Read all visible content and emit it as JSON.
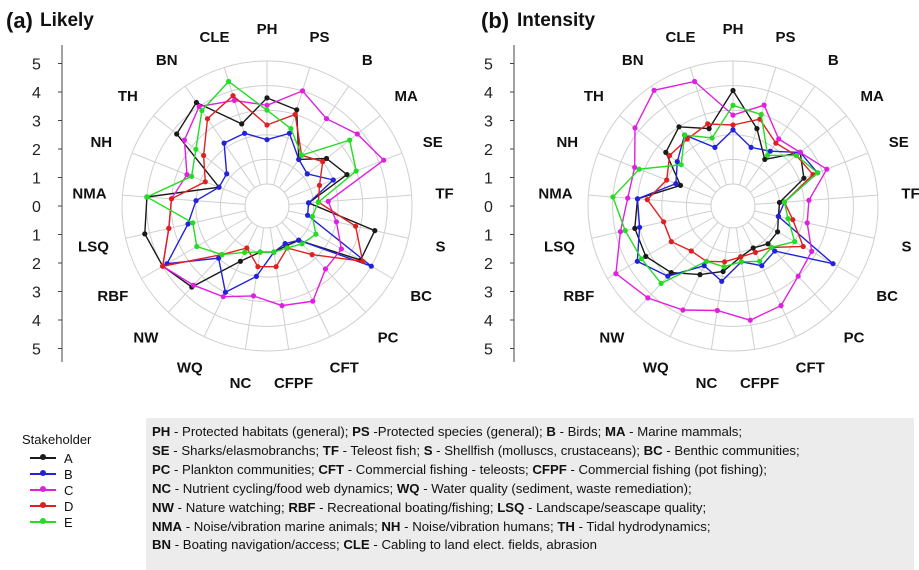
{
  "legend": {
    "title": "Stakeholder",
    "items": [
      {
        "name": "A",
        "color": "#1a1a1a"
      },
      {
        "name": "B",
        "color": "#2222dd"
      },
      {
        "name": "C",
        "color": "#e020e0"
      },
      {
        "name": "D",
        "color": "#e02020"
      },
      {
        "name": "E",
        "color": "#22dd22"
      }
    ]
  },
  "abbreviations": [
    [
      {
        "code": "PH",
        "desc": " - Protected habitats (general); "
      },
      {
        "code": "PS",
        "desc": " -Protected species (general); "
      },
      {
        "code": "B",
        "desc": " - Birds; "
      },
      {
        "code": "MA",
        "desc": " - Marine mammals;"
      }
    ],
    [
      {
        "code": "SE",
        "desc": " - Sharks/elasmobranchs; "
      },
      {
        "code": "TF",
        "desc": " - Teleost fish; "
      },
      {
        "code": "S",
        "desc": " - Shellfish (molluscs, crustaceans); "
      },
      {
        "code": "BC",
        "desc": " - Benthic communities;"
      }
    ],
    [
      {
        "code": "PC",
        "desc": " -  Plankton communities; "
      },
      {
        "code": "CFT",
        "desc": " - Commercial fishing - teleosts; "
      },
      {
        "code": "CFPF",
        "desc": " - Commercial fishing (pot fishing);"
      }
    ],
    [
      {
        "code": "NC",
        "desc": " - Nutrient cycling/food web dynamics; "
      },
      {
        "code": "WQ",
        "desc": " - Water quality (sediment, waste remediation);"
      }
    ],
    [
      {
        "code": "NW",
        "desc": " - Nature watching; "
      },
      {
        "code": "RBF",
        "desc": " - Recreational boating/fishing; "
      },
      {
        "code": "LSQ",
        "desc": " - Landscape/seascape quality;"
      }
    ],
    [
      {
        "code": "NMA",
        "desc": " - Noise/vibration marine animals; "
      },
      {
        "code": "NH",
        "desc": " - Noise/vibration humans; "
      },
      {
        "code": "TH",
        "desc": " - Tidal hydrodynamics;"
      }
    ],
    [
      {
        "code": "BN",
        "desc": " - Boating navigation/access; "
      },
      {
        "code": "CLE",
        "desc": " - Cabling to land elect. fields, abrasion"
      }
    ]
  ],
  "chart_data": [
    {
      "type": "radar",
      "panel_letter": "(a)",
      "title": "Likely",
      "categories": [
        "PH",
        "PS",
        "B",
        "MA",
        "SE",
        "TF",
        "S",
        "BC",
        "PC",
        "CFT",
        "CFPF",
        "NC",
        "WQ",
        "NW",
        "RBF",
        "LSQ",
        "NMA",
        "NH",
        "TH",
        "BN",
        "CLE"
      ],
      "scale_labels_top": [
        "5",
        "4",
        "3",
        "2",
        "1",
        "0"
      ],
      "scale_labels_bottom": [
        "1",
        "2",
        "3",
        "4",
        "5"
      ],
      "rmax": 5,
      "grid": true,
      "series": [
        {
          "name": "A",
          "color": "#1a1a1a",
          "values": [
            3.5,
            3.2,
            1.4,
            2.2,
            2.6,
            0.8,
            3.6,
            3.5,
            1.0,
            0.9,
            1.0,
            1.0,
            1.6,
            3.6,
            4.0,
            4.2,
            4.0,
            1.2,
            3.8,
            4.2,
            2.6
          ]
        },
        {
          "name": "B",
          "color": "#2222dd",
          "values": [
            1.8,
            2.2,
            1.4,
            1.2,
            2.0,
            0.8,
            0.8,
            4.0,
            1.0,
            0.8,
            1.0,
            2.0,
            3.0,
            2.0,
            3.8,
            2.4,
            2.0,
            1.2,
            1.2,
            2.2,
            2.2
          ]
        },
        {
          "name": "C",
          "color": "#e020e0",
          "values": [
            3.2,
            4.0,
            3.4,
            3.8,
            4.2,
            1.6,
            2.0,
            2.6,
            2.6,
            3.4,
            3.2,
            2.8,
            3.2,
            3.5,
            4.0,
            3.2,
            3.0,
            2.6,
            3.4,
            4.0,
            3.6
          ]
        },
        {
          "name": "D",
          "color": "#e02020",
          "values": [
            2.4,
            3.0,
            1.6,
            2.0,
            1.4,
            1.2,
            2.8,
            3.6,
            1.8,
            1.0,
            1.6,
            1.6,
            1.0,
            1.8,
            4.0,
            3.2,
            3.0,
            1.8,
            2.4,
            3.4,
            3.8
          ]
        },
        {
          "name": "E",
          "color": "#22dd22",
          "values": [
            3.0,
            2.4,
            1.6,
            3.4,
            3.0,
            1.2,
            1.0,
            1.4,
            1.2,
            1.0,
            1.0,
            1.0,
            1.2,
            1.8,
            2.4,
            2.2,
            4.0,
            2.4,
            2.8,
            3.8,
            4.4
          ]
        }
      ]
    },
    {
      "type": "radar",
      "panel_letter": "(b)",
      "title": "Intensity",
      "categories": [
        "PH",
        "PS",
        "B",
        "MA",
        "SE",
        "TF",
        "S",
        "BC",
        "PC",
        "CFT",
        "CFPF",
        "NC",
        "WQ",
        "NW",
        "RBF",
        "LSQ",
        "NMA",
        "NH",
        "TH",
        "BN",
        "CLE"
      ],
      "scale_labels_top": [
        "5",
        "4",
        "3",
        "2",
        "1",
        "0"
      ],
      "scale_labels_bottom": [
        "1",
        "2",
        "3",
        "4",
        "5"
      ],
      "rmax": 5,
      "grid": true,
      "series": [
        {
          "name": "A",
          "color": "#1a1a1a",
          "values": [
            3.8,
            2.4,
            1.4,
            2.6,
            2.2,
            1.0,
            1.0,
            1.2,
            1.2,
            1.0,
            1.2,
            1.8,
            2.2,
            2.8,
            3.2,
            3.2,
            3.0,
            1.4,
            2.6,
            3.0,
            2.4
          ]
        },
        {
          "name": "B",
          "color": "#2222dd",
          "values": [
            2.2,
            1.6,
            1.8,
            2.6,
            2.8,
            1.2,
            1.0,
            3.8,
            1.6,
            1.8,
            1.4,
            2.2,
            1.8,
            3.0,
            3.6,
            3.0,
            3.0,
            1.6,
            2.0,
            2.6,
            1.6
          ]
        },
        {
          "name": "C",
          "color": "#e020e0",
          "values": [
            2.8,
            3.4,
            2.4,
            2.6,
            3.2,
            2.2,
            2.2,
            2.8,
            3.0,
            3.6,
            3.8,
            3.4,
            3.8,
            4.2,
            4.6,
            3.8,
            3.4,
            3.4,
            4.2,
            4.8,
            4.4
          ]
        },
        {
          "name": "D",
          "color": "#e02020",
          "values": [
            2.4,
            2.8,
            2.2,
            2.4,
            2.6,
            1.2,
            1.6,
            2.4,
            1.4,
            1.2,
            1.2,
            1.4,
            1.6,
            1.6,
            2.0,
            2.0,
            2.6,
            2.0,
            2.4,
            2.4,
            2.6
          ]
        },
        {
          "name": "E",
          "color": "#22dd22",
          "values": [
            3.2,
            3.0,
            1.6,
            2.4,
            2.8,
            1.2,
            1.4,
            2.0,
            1.4,
            1.6,
            1.4,
            1.6,
            1.6,
            3.4,
            3.4,
            3.6,
            4.0,
            3.2,
            1.8,
            2.6,
            2.0
          ]
        }
      ]
    }
  ]
}
